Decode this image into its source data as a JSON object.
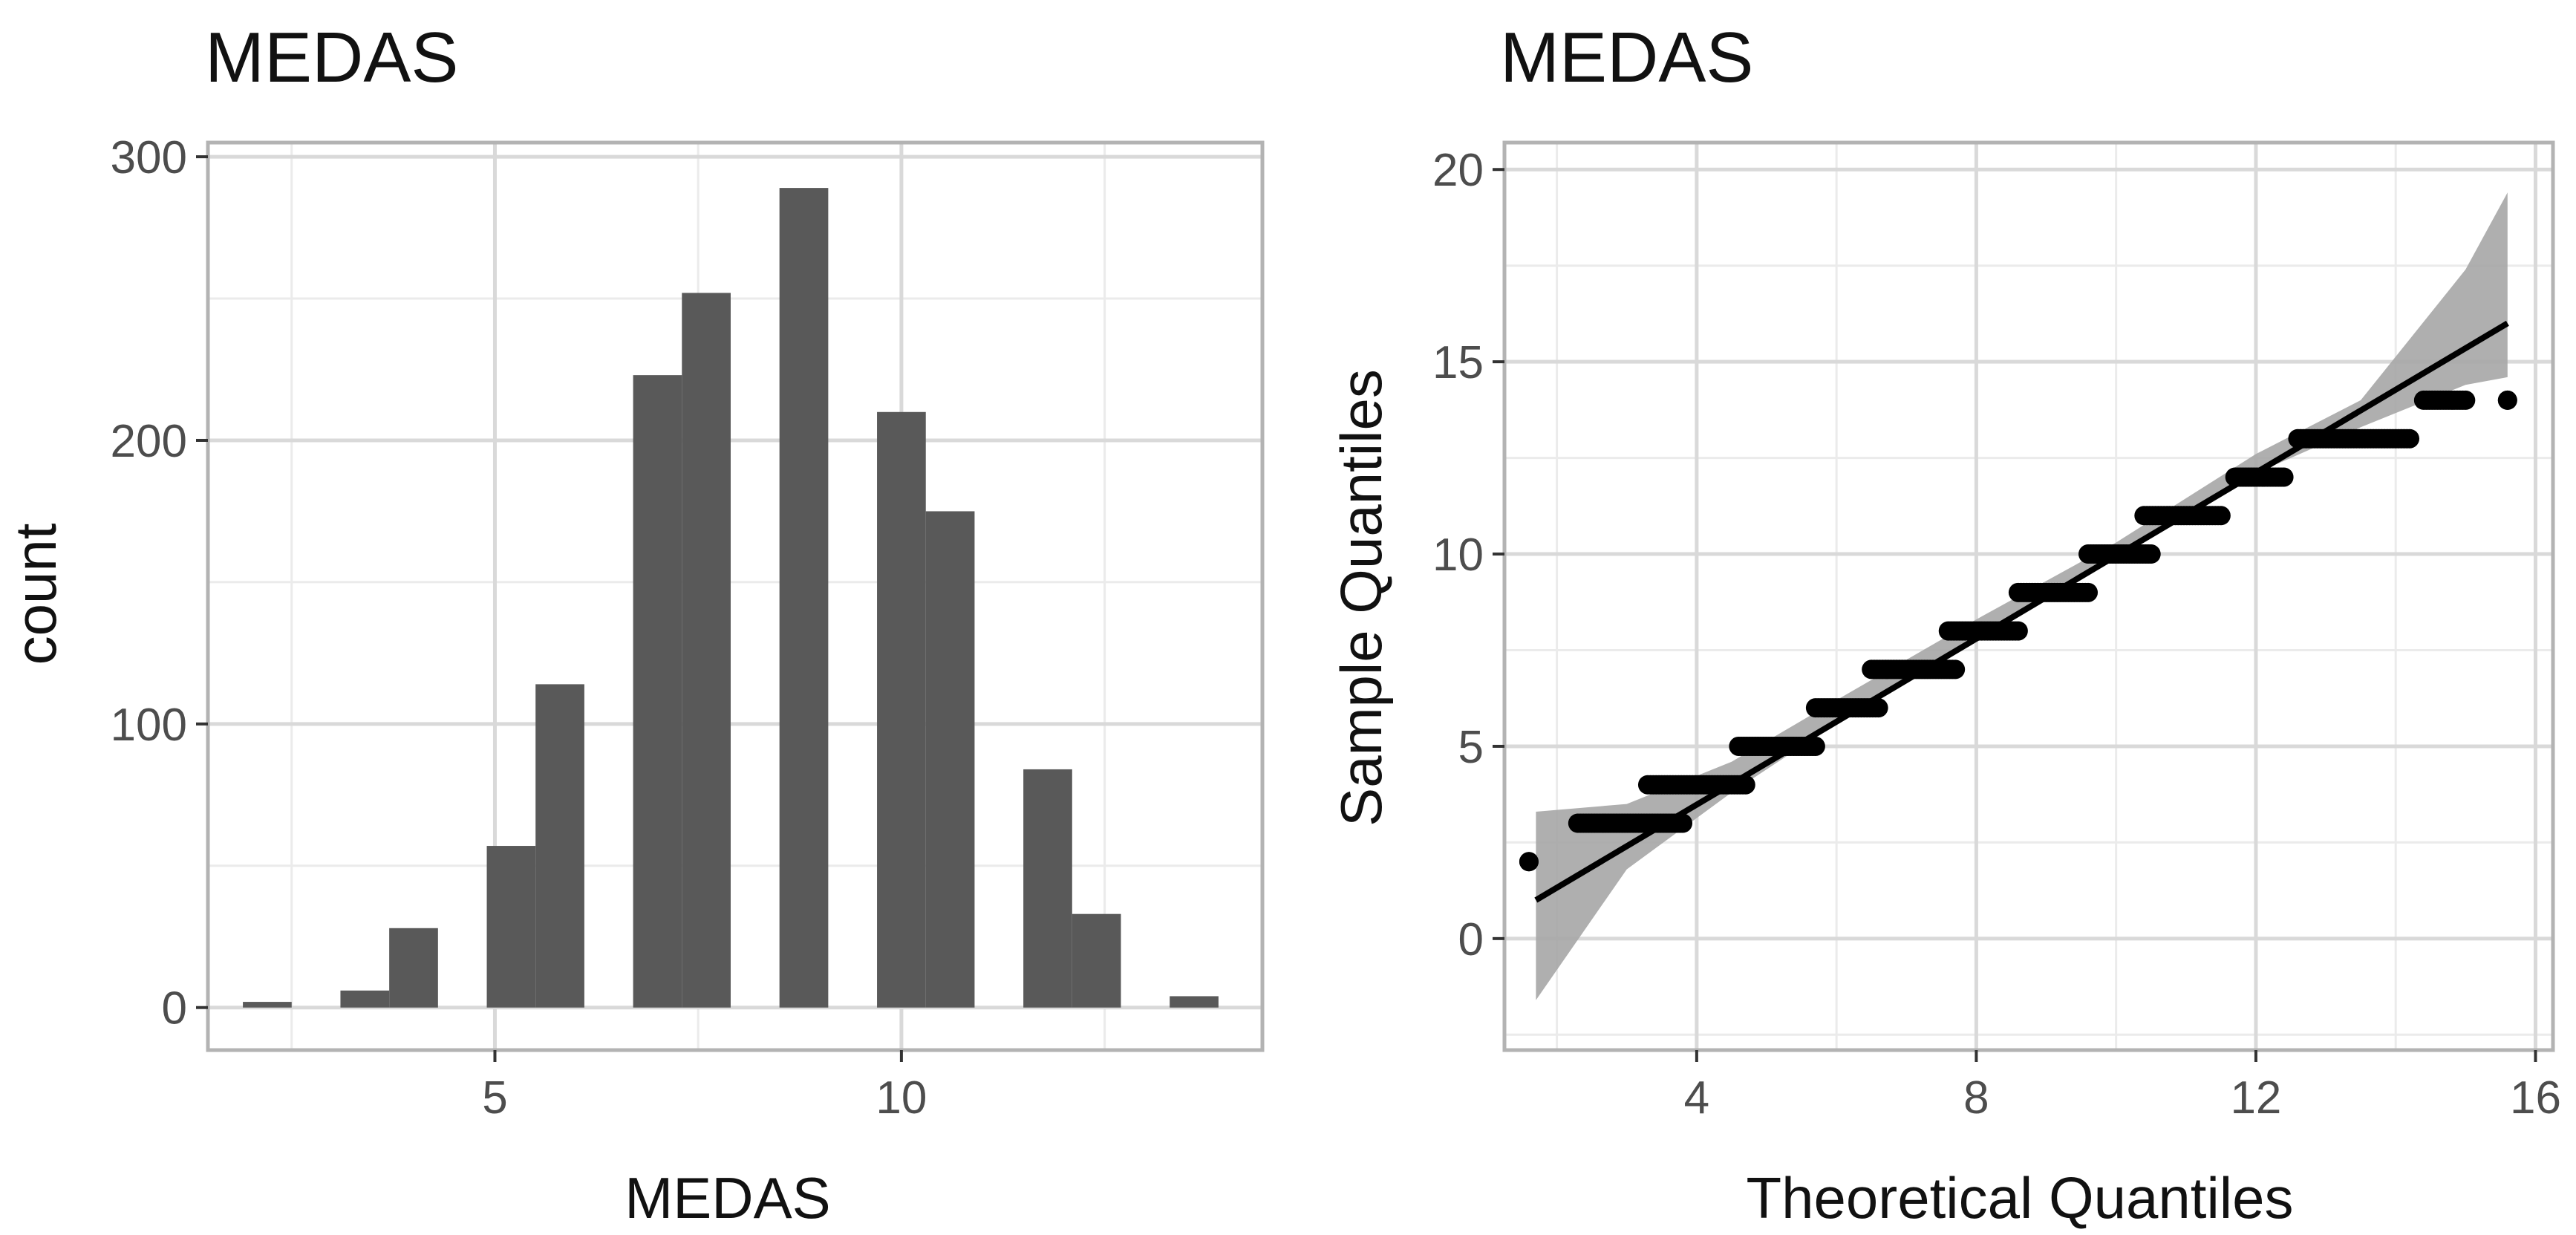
{
  "chart_data": [
    {
      "type": "bar",
      "title": "MEDAS",
      "xlabel": "MEDAS",
      "ylabel": "count",
      "xlim": [
        1.47,
        14.44
      ],
      "ylim": [
        -15,
        305
      ],
      "x_ticks": [
        5,
        10
      ],
      "y_ticks": [
        0,
        100,
        200,
        300
      ],
      "bin_width": 0.6,
      "bins": [
        {
          "x": 2.2,
          "count": 2
        },
        {
          "x": 3.4,
          "count": 6
        },
        {
          "x": 4.0,
          "count": 28
        },
        {
          "x": 5.2,
          "count": 57
        },
        {
          "x": 5.8,
          "count": 114
        },
        {
          "x": 7.0,
          "count": 223
        },
        {
          "x": 7.6,
          "count": 252
        },
        {
          "x": 8.8,
          "count": 289
        },
        {
          "x": 10.0,
          "count": 210
        },
        {
          "x": 10.6,
          "count": 175
        },
        {
          "x": 11.8,
          "count": 84
        },
        {
          "x": 12.4,
          "count": 33
        },
        {
          "x": 13.6,
          "count": 4
        }
      ],
      "bar_color": "#595959",
      "grid": true
    },
    {
      "type": "scatter",
      "title": "MEDAS",
      "xlabel": "Theoretical Quantiles",
      "ylabel": "Sample Quantiles",
      "xlim": [
        1.25,
        16.25
      ],
      "ylim": [
        -2.9,
        20.7
      ],
      "x_ticks": [
        4,
        8,
        12,
        16
      ],
      "y_ticks": [
        0,
        5,
        10,
        15,
        20
      ],
      "steps": [
        {
          "y": 2,
          "x_from": 1.6,
          "x_to": 1.6
        },
        {
          "y": 3,
          "x_from": 2.3,
          "x_to": 3.8
        },
        {
          "y": 4,
          "x_from": 3.3,
          "x_to": 4.7
        },
        {
          "y": 5,
          "x_from": 4.6,
          "x_to": 5.7
        },
        {
          "y": 6,
          "x_from": 5.7,
          "x_to": 6.6
        },
        {
          "y": 7,
          "x_from": 6.5,
          "x_to": 7.7
        },
        {
          "y": 8,
          "x_from": 7.6,
          "x_to": 8.6
        },
        {
          "y": 9,
          "x_from": 8.6,
          "x_to": 9.6
        },
        {
          "y": 10,
          "x_from": 9.6,
          "x_to": 10.5
        },
        {
          "y": 11,
          "x_from": 10.4,
          "x_to": 11.5
        },
        {
          "y": 12,
          "x_from": 11.7,
          "x_to": 12.4
        },
        {
          "y": 13,
          "x_from": 12.6,
          "x_to": 14.2
        },
        {
          "y": 14,
          "x_from": 14.4,
          "x_to": 15.0
        },
        {
          "y": 14,
          "x_from": 15.6,
          "x_to": 15.6
        }
      ],
      "reference_line": {
        "x": [
          1.7,
          15.6
        ],
        "y": [
          1.0,
          16.0
        ]
      },
      "confidence_band": {
        "x": [
          1.7,
          3.0,
          4.5,
          6.0,
          8.0,
          10.0,
          12.0,
          13.5,
          15.0,
          15.6
        ],
        "lower": [
          -1.6,
          1.8,
          3.8,
          5.6,
          7.9,
          9.9,
          12.1,
          13.3,
          14.4,
          14.6
        ],
        "upper": [
          3.3,
          3.5,
          4.6,
          6.2,
          8.3,
          10.3,
          12.6,
          14.0,
          17.4,
          19.4
        ]
      },
      "point_color": "#000000",
      "band_color": "#a6a6a6",
      "grid": true
    }
  ]
}
